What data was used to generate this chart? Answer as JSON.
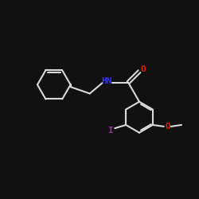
{
  "bg_color": "#111111",
  "line_color": "#d8d8d8",
  "bond_width": 1.5,
  "nh_color": "#3333ff",
  "o_color": "#dd2200",
  "i_color": "#9933aa",
  "font_size": 8,
  "label_color": "#d8d8d8",
  "figsize": [
    2.5,
    2.5
  ],
  "dpi": 100,
  "xlim": [
    -4.5,
    4.5
  ],
  "ylim": [
    -4.5,
    4.5
  ]
}
